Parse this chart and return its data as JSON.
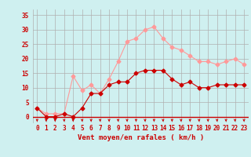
{
  "x": [
    0,
    1,
    2,
    3,
    4,
    5,
    6,
    7,
    8,
    9,
    10,
    11,
    12,
    13,
    14,
    15,
    16,
    17,
    18,
    19,
    20,
    21,
    22,
    23
  ],
  "y_mean": [
    3,
    0,
    0,
    1,
    0,
    3,
    8,
    8,
    11,
    12,
    12,
    15,
    16,
    16,
    16,
    13,
    11,
    12,
    10,
    10,
    11,
    11,
    11,
    11
  ],
  "y_gust": [
    3,
    1,
    1,
    1,
    14,
    9,
    11,
    8,
    13,
    19,
    26,
    27,
    30,
    31,
    27,
    24,
    23,
    21,
    19,
    19,
    18,
    19,
    20,
    18
  ],
  "background_color": "#cff0f0",
  "grid_color": "#b0b0b0",
  "line_mean_color": "#cc0000",
  "line_gust_color": "#ff9999",
  "xlabel": "Vent moyen/en rafales ( km/h )",
  "ylabel_ticks": [
    0,
    5,
    10,
    15,
    20,
    25,
    30,
    35
  ],
  "ylim": [
    -2,
    37
  ],
  "xlim": [
    -0.5,
    23.5
  ],
  "xlabel_color": "#cc0000",
  "tick_color": "#cc0000",
  "arrow_color": "#cc0000",
  "figsize": [
    3.2,
    2.0
  ],
  "dpi": 100
}
